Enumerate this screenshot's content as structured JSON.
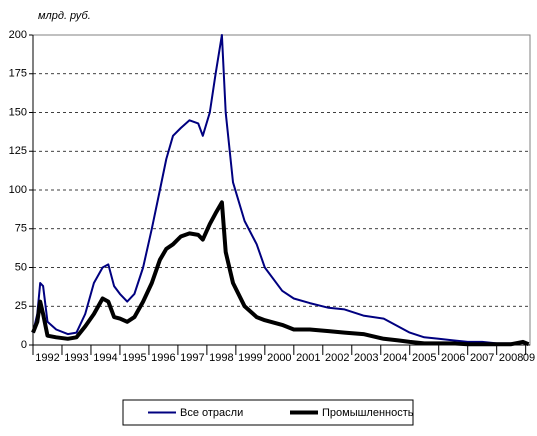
{
  "chart_data": {
    "type": "line",
    "y_label": "млрд. руб.",
    "x": [
      1992.0,
      1992.15,
      1992.25,
      1992.35,
      1992.5,
      1992.8,
      1993.2,
      1993.5,
      1993.8,
      1994.1,
      1994.4,
      1994.6,
      1994.8,
      1995.0,
      1995.25,
      1995.5,
      1995.8,
      1996.1,
      1996.38,
      1996.6,
      1996.83,
      1997.1,
      1997.4,
      1997.7,
      1997.86,
      1998.1,
      1998.3,
      1998.52,
      1998.65,
      1998.9,
      1999.3,
      1999.72,
      2000.0,
      2000.6,
      2001.0,
      2001.55,
      2002.2,
      2002.75,
      2003.4,
      2004.1,
      2004.6,
      2005.0,
      2005.5,
      2006.0,
      2006.5,
      2007.0,
      2007.5,
      2008.0,
      2008.5,
      2008.9,
      2009.1
    ],
    "series": [
      {
        "name": "Все отрасли",
        "color": "#000080",
        "width": 2,
        "values": [
          8,
          20,
          40,
          38,
          15,
          10,
          7,
          8,
          20,
          40,
          50,
          52,
          38,
          33,
          28,
          33,
          50,
          75,
          100,
          120,
          135,
          140,
          145,
          143,
          135,
          150,
          175,
          200,
          150,
          105,
          80,
          65,
          50,
          35,
          30,
          27,
          24,
          23,
          19,
          17,
          12,
          8,
          5,
          4,
          3,
          2,
          2,
          1,
          1,
          2,
          1
        ]
      },
      {
        "name": "Промышленность",
        "color": "#000000",
        "width": 4,
        "values": [
          8,
          15,
          28,
          20,
          6,
          5,
          4,
          5,
          12,
          20,
          30,
          28,
          18,
          17,
          15,
          18,
          28,
          40,
          55,
          62,
          65,
          70,
          72,
          71,
          68,
          78,
          85,
          92,
          60,
          40,
          25,
          18,
          16,
          13,
          10,
          10,
          9,
          8,
          7,
          4,
          3,
          2,
          1,
          1,
          1,
          0.5,
          0.5,
          0.5,
          0.5,
          2,
          0.5
        ]
      }
    ],
    "xlim": [
      1992,
      2009.15
    ],
    "xticks": [
      1992,
      1993,
      1994,
      1995,
      1996,
      1997,
      1998,
      1999,
      2000,
      2001,
      2002,
      2003,
      2004,
      2005,
      2006,
      2007,
      2008,
      {
        "value": 2009,
        "label": "09"
      }
    ],
    "ylim": [
      0,
      200
    ],
    "yticks": [
      0,
      25,
      50,
      75,
      100,
      125,
      150,
      175,
      200
    ],
    "grid": true,
    "legend": "bottom"
  }
}
